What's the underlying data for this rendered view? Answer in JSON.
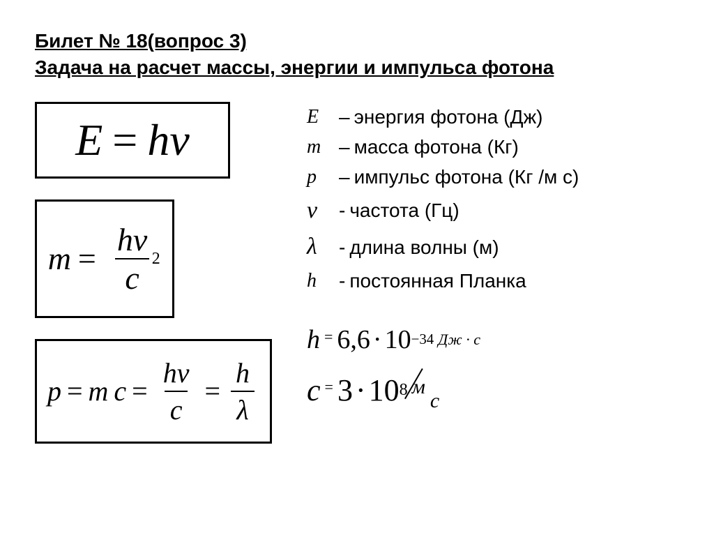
{
  "heading_line1": "Билет № 18(вопрос 3)",
  "heading_line2": "Задача на расчет массы, энергии и импульса фотона",
  "formulas": {
    "energy": {
      "lhs": "E",
      "eq": "=",
      "rhs_h": "h",
      "rhs_nu": "ν"
    },
    "mass": {
      "lhs": "m",
      "eq": "=",
      "num_h": "h",
      "num_nu": "ν",
      "den_c": "c",
      "den_exp": "2"
    },
    "momentum": {
      "lhs": "p",
      "eq1": "=",
      "mc_m": "m",
      "mc_c": "c",
      "eq2": "=",
      "f1_num_h": "h",
      "f1_num_nu": "ν",
      "f1_den": "c",
      "eq3": "=",
      "f2_num": "h",
      "f2_den": "λ"
    }
  },
  "definitions": [
    {
      "sym": "E",
      "sep": "–",
      "text": "энергия фотона (Дж)",
      "italic": true
    },
    {
      "sym": "m",
      "sep": "–",
      "text": "масса фотона (Кг)",
      "italic": true
    },
    {
      "sym": "p",
      "sep": "–",
      "text": "импульс фотона (Кг /м с)",
      "italic": true
    },
    {
      "sym": "ν",
      "sep": "-",
      "text": "частота (Гц)",
      "italic": true
    },
    {
      "sym": "λ",
      "sep": "-",
      "text": "длина волны (м)",
      "italic": true
    },
    {
      "sym": "h",
      "sep": "-",
      "text": "постоянная Планка",
      "italic": true
    }
  ],
  "constants": {
    "planck": {
      "sym": "h",
      "eq": "=",
      "coef": "6,6",
      "dot": "·",
      "base": "10",
      "exp": "−34",
      "unit": "Дж · с"
    },
    "light": {
      "sym": "c",
      "eq": "=",
      "coef": "3",
      "dot": "·",
      "base": "10",
      "exp": "8",
      "unit_top": "м",
      "unit_bot": "с"
    }
  },
  "colors": {
    "text": "#000000",
    "background": "#ffffff",
    "border": "#000000"
  }
}
